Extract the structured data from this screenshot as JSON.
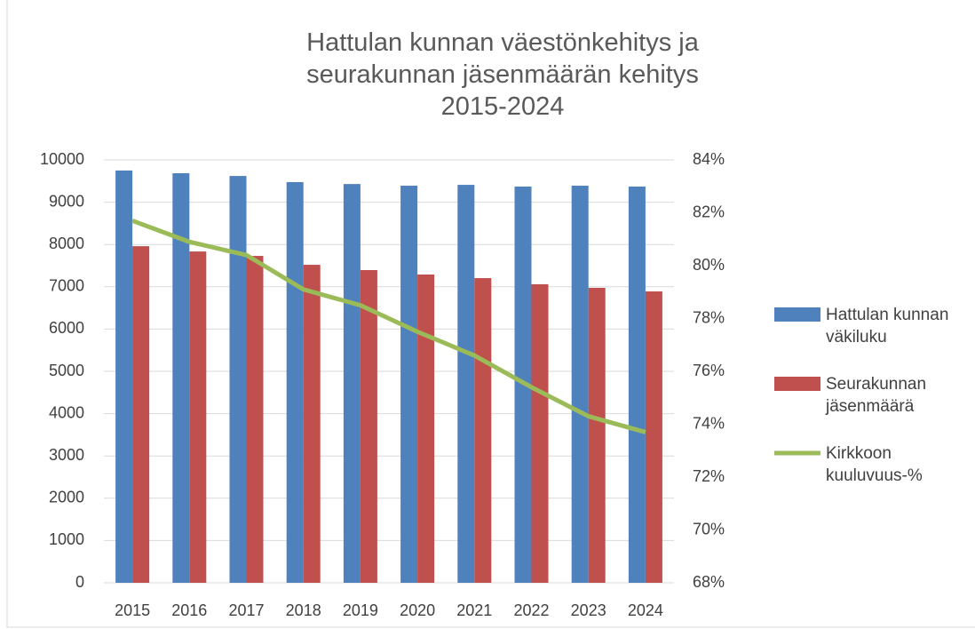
{
  "chart_data": {
    "type": "bar_line",
    "title": "Hattulan kunnan väestönkehitys ja seurakunnan jäsenmäärän kehitys 2015-2024",
    "categories": [
      "2015",
      "2016",
      "2017",
      "2018",
      "2019",
      "2020",
      "2021",
      "2022",
      "2023",
      "2024"
    ],
    "series": [
      {
        "name": "Hattulan kunnan väkiluku",
        "type": "bar",
        "color": "#4f81bd",
        "axis": "y",
        "values": [
          9750,
          9685,
          9620,
          9475,
          9430,
          9390,
          9410,
          9370,
          9390,
          9370
        ]
      },
      {
        "name": "Seurakunnan jäsenmäärä",
        "type": "bar",
        "color": "#c0504d",
        "axis": "y",
        "values": [
          7960,
          7835,
          7730,
          7520,
          7395,
          7290,
          7205,
          7060,
          6975,
          6890
        ]
      },
      {
        "name": "Kirkkoon kuuluvuus-%",
        "type": "line",
        "color": "#9bbb59",
        "axis": "y2",
        "values": [
          81.7,
          80.9,
          80.4,
          79.1,
          78.5,
          77.5,
          76.6,
          75.4,
          74.3,
          73.7
        ]
      }
    ],
    "ylim": [
      0,
      10000
    ],
    "yticks": [
      0,
      1000,
      2000,
      3000,
      4000,
      5000,
      6000,
      7000,
      8000,
      9000,
      10000
    ],
    "y2lim": [
      68,
      84
    ],
    "y2ticks": [
      {
        "value": 68,
        "label": "68%"
      },
      {
        "value": 70,
        "label": "70%"
      },
      {
        "value": 72,
        "label": "72%"
      },
      {
        "value": 74,
        "label": "74%"
      },
      {
        "value": 76,
        "label": "76%"
      },
      {
        "value": 78,
        "label": "78%"
      },
      {
        "value": 80,
        "label": "80%"
      },
      {
        "value": 82,
        "label": "82%"
      },
      {
        "value": 84,
        "label": "84%"
      }
    ],
    "grid": true,
    "legend": "right"
  }
}
